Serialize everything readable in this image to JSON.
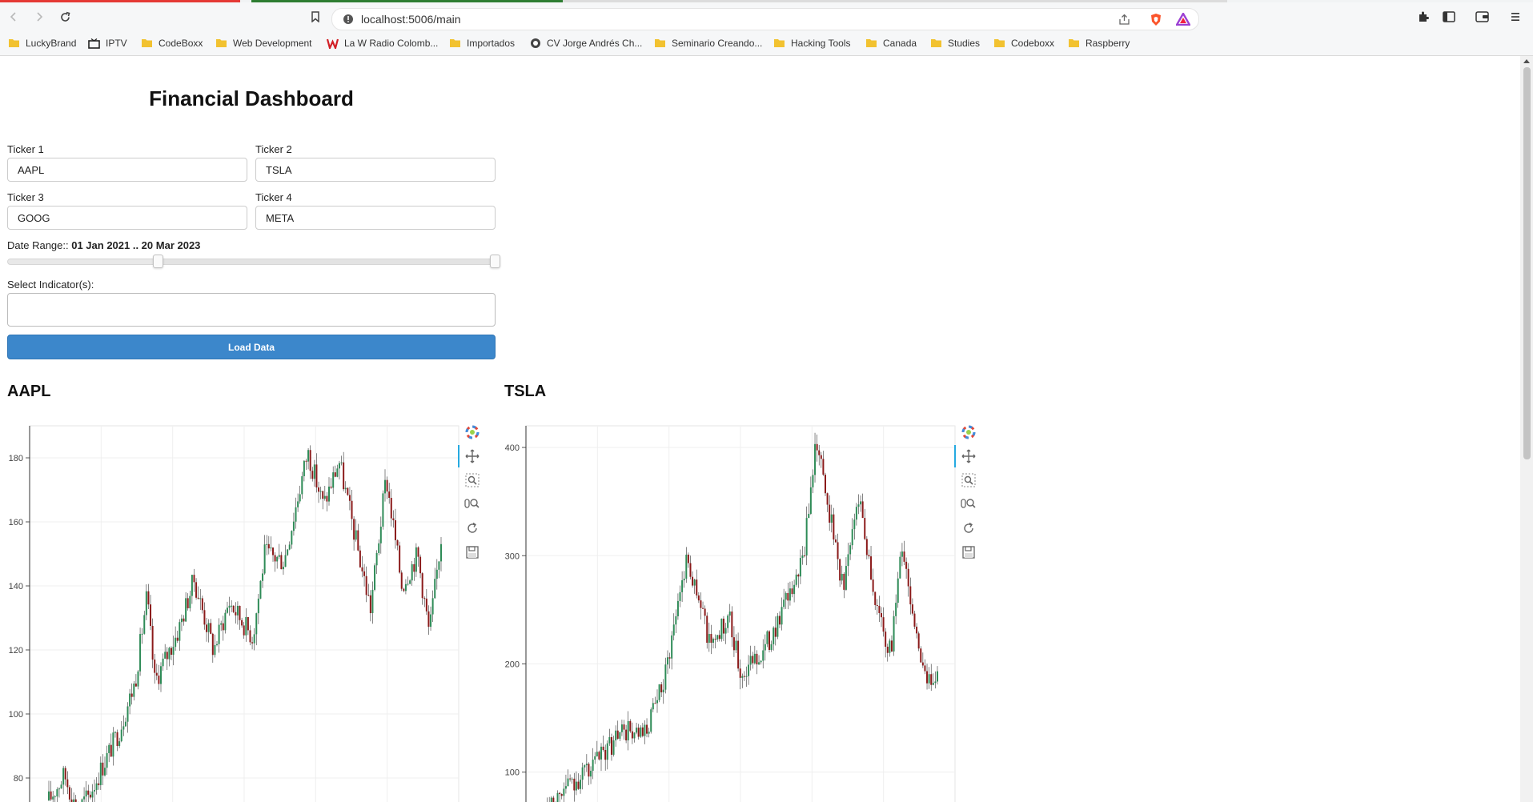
{
  "browser": {
    "url": "localhost:5006/main",
    "bookmarks": [
      {
        "label": "LuckyBrand",
        "icon": "folder-icon"
      },
      {
        "label": "IPTV",
        "icon": "tv-icon"
      },
      {
        "label": "CodeBoxx",
        "icon": "folder-icon"
      },
      {
        "label": "Web Development",
        "icon": "folder-icon"
      },
      {
        "label": "La W Radio Colomb...",
        "icon": "w-radio-icon"
      },
      {
        "label": "Importados",
        "icon": "folder-icon"
      },
      {
        "label": "CV Jorge Andrés Ch...",
        "icon": "globe-icon"
      },
      {
        "label": "Seminario Creando...",
        "icon": "folder-icon"
      },
      {
        "label": "Hacking Tools",
        "icon": "folder-icon"
      },
      {
        "label": "Canada",
        "icon": "folder-icon"
      },
      {
        "label": "Studies",
        "icon": "folder-icon"
      },
      {
        "label": "Codeboxx",
        "icon": "folder-icon"
      },
      {
        "label": "Raspberry",
        "icon": "folder-icon"
      }
    ]
  },
  "dashboard": {
    "title": "Financial Dashboard",
    "tickers": [
      {
        "label": "Ticker 1",
        "value": "AAPL"
      },
      {
        "label": "Ticker 2",
        "value": "TSLA"
      },
      {
        "label": "Ticker 3",
        "value": "GOOG"
      },
      {
        "label": "Ticker 4",
        "value": "META"
      }
    ],
    "date_range": {
      "label": "Date Range::",
      "value": "01 Jan 2021 .. 20 Mar 2023",
      "start_fraction": 0.31,
      "end_fraction": 1.0
    },
    "indicator_label": "Select Indicator(s):",
    "indicator_value": "",
    "load_button": "Load Data",
    "colors": {
      "accent": "#3c87cb",
      "candle_up": "#2e8b57",
      "candle_down": "#8b1a1a"
    }
  },
  "chart_data": [
    {
      "type": "candlestick",
      "title": "AAPL",
      "ylim": [
        70,
        190
      ],
      "yticks": [
        80,
        100,
        120,
        140,
        160,
        180
      ],
      "anchors": [
        [
          0,
          73
        ],
        [
          0.04,
          81
        ],
        [
          0.07,
          70
        ],
        [
          0.1,
          74
        ],
        [
          0.18,
          95
        ],
        [
          0.22,
          110
        ],
        [
          0.25,
          137
        ],
        [
          0.27,
          110
        ],
        [
          0.33,
          126
        ],
        [
          0.37,
          142
        ],
        [
          0.42,
          120
        ],
        [
          0.46,
          135
        ],
        [
          0.52,
          124
        ],
        [
          0.55,
          150
        ],
        [
          0.6,
          148
        ],
        [
          0.66,
          182
        ],
        [
          0.7,
          165
        ],
        [
          0.74,
          179
        ],
        [
          0.79,
          150
        ],
        [
          0.82,
          133
        ],
        [
          0.86,
          174
        ],
        [
          0.9,
          140
        ],
        [
          0.94,
          150
        ],
        [
          0.97,
          125
        ],
        [
          1.0,
          155
        ]
      ]
    },
    {
      "type": "candlestick",
      "title": "TSLA",
      "ylim": [
        65,
        420
      ],
      "yticks": [
        100,
        200,
        300,
        400
      ],
      "anchors": [
        [
          0,
          70
        ],
        [
          0.12,
          105
        ],
        [
          0.2,
          140
        ],
        [
          0.25,
          130
        ],
        [
          0.3,
          180
        ],
        [
          0.36,
          300
        ],
        [
          0.42,
          220
        ],
        [
          0.47,
          240
        ],
        [
          0.5,
          190
        ],
        [
          0.56,
          215
        ],
        [
          0.62,
          260
        ],
        [
          0.66,
          300
        ],
        [
          0.69,
          410
        ],
        [
          0.72,
          350
        ],
        [
          0.76,
          270
        ],
        [
          0.8,
          360
        ],
        [
          0.84,
          260
        ],
        [
          0.88,
          210
        ],
        [
          0.91,
          310
        ],
        [
          0.94,
          240
        ],
        [
          0.97,
          180
        ],
        [
          1.0,
          195
        ]
      ]
    }
  ]
}
